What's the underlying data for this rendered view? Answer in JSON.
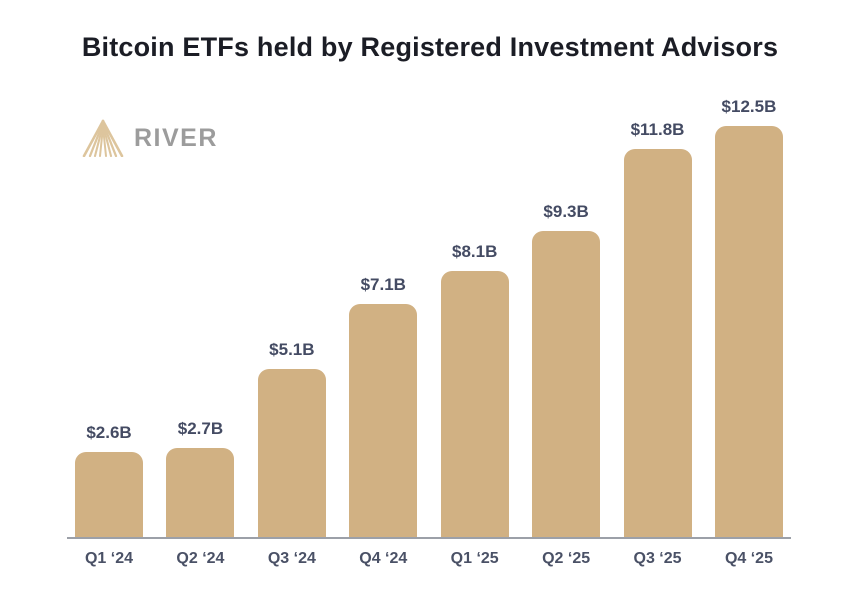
{
  "logo": {
    "text": "RIVER",
    "icon": "river-fan-icon",
    "icon_color": "#ddc59d",
    "text_color": "#9c9c9c"
  },
  "chart_data": {
    "type": "bar",
    "title": "Bitcoin ETFs held by Registered Investment Advisors",
    "categories": [
      "Q1 ‘24",
      "Q2 ‘24",
      "Q3 ‘24",
      "Q4 ‘24",
      "Q1 ‘25",
      "Q2 ‘25",
      "Q3 ‘25",
      "Q4 ‘25"
    ],
    "values": [
      2.6,
      2.7,
      5.1,
      7.1,
      8.1,
      9.3,
      11.8,
      12.5
    ],
    "labels": [
      "$2.6B",
      "$2.7B",
      "$5.1B",
      "$7.1B",
      "$8.1B",
      "$9.3B",
      "$11.8B",
      "$12.5B"
    ],
    "xlabel": "",
    "ylabel": "",
    "ylim": [
      0,
      12.5
    ],
    "grid": "off",
    "legend": "none",
    "bar_color": "#d1b183",
    "axis_line_color": "#9ca0a8",
    "value_label_color": "#444b63",
    "category_label_color": "#4a5166",
    "title_color": "#1b1d25"
  }
}
